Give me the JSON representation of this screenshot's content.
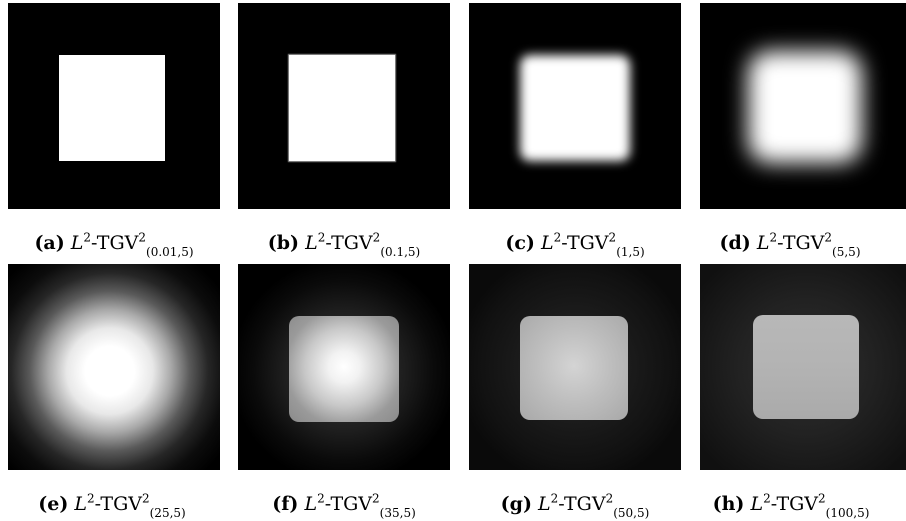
{
  "figure": {
    "panels": [
      {
        "tag": "(a)",
        "base": "L",
        "exp": "2",
        "op": "-TGV",
        "sup": "2",
        "sub": "(0.01,5)"
      },
      {
        "tag": "(b)",
        "base": "L",
        "exp": "2",
        "op": "-TGV",
        "sup": "2",
        "sub": "(0.1,5)"
      },
      {
        "tag": "(c)",
        "base": "L",
        "exp": "2",
        "op": "-TGV",
        "sup": "2",
        "sub": "(1,5)"
      },
      {
        "tag": "(d)",
        "base": "L",
        "exp": "2",
        "op": "-TGV",
        "sup": "2",
        "sub": "(5,5)"
      },
      {
        "tag": "(e)",
        "base": "L",
        "exp": "2",
        "op": "-TGV",
        "sup": "2",
        "sub": "(25,5)"
      },
      {
        "tag": "(f)",
        "base": "L",
        "exp": "2",
        "op": "-TGV",
        "sup": "2",
        "sub": "(35,5)"
      },
      {
        "tag": "(g)",
        "base": "L",
        "exp": "2",
        "op": "-TGV",
        "sup": "2",
        "sub": "(50,5)"
      },
      {
        "tag": "(h)",
        "base": "L",
        "exp": "2",
        "op": "-TGV",
        "sup": "2",
        "sub": "(100,5)"
      }
    ]
  }
}
